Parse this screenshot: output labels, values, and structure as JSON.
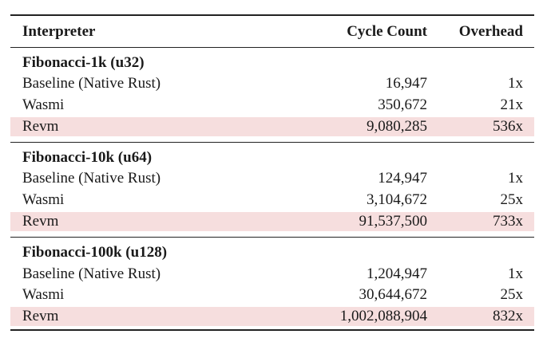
{
  "header": {
    "interpreter": "Interpreter",
    "cycle_count": "Cycle Count",
    "overhead": "Overhead"
  },
  "groups": [
    {
      "title": "Fibonacci-1k (u32)",
      "rows": [
        {
          "interpreter": "Baseline (Native Rust)",
          "cycles": "16,947",
          "overhead": "1x",
          "highlight": false
        },
        {
          "interpreter": "Wasmi",
          "cycles": "350,672",
          "overhead": "21x",
          "highlight": false
        },
        {
          "interpreter": "Revm",
          "cycles": "9,080,285",
          "overhead": "536x",
          "highlight": true
        }
      ]
    },
    {
      "title": "Fibonacci-10k (u64)",
      "rows": [
        {
          "interpreter": "Baseline (Native Rust)",
          "cycles": "124,947",
          "overhead": "1x",
          "highlight": false
        },
        {
          "interpreter": "Wasmi",
          "cycles": "3,104,672",
          "overhead": "25x",
          "highlight": false
        },
        {
          "interpreter": "Revm",
          "cycles": "91,537,500",
          "overhead": "733x",
          "highlight": true
        }
      ]
    },
    {
      "title": "Fibonacci-100k (u128)",
      "rows": [
        {
          "interpreter": "Baseline (Native Rust)",
          "cycles": "1,204,947",
          "overhead": "1x",
          "highlight": false
        },
        {
          "interpreter": "Wasmi",
          "cycles": "30,644,672",
          "overhead": "25x",
          "highlight": false
        },
        {
          "interpreter": "Revm",
          "cycles": "1,002,088,904",
          "overhead": "832x",
          "highlight": true
        }
      ]
    }
  ],
  "colors": {
    "highlight_row": "#f6dede",
    "rule": "#222222"
  }
}
